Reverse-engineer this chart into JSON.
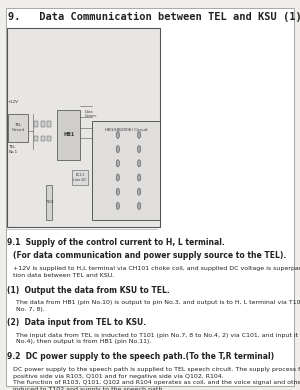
{
  "page_bg": "#f0eeeb",
  "content_bg": "#ffffff",
  "title": "9.   Data Communication between TEL and KSU (1)",
  "title_fontsize": 7.5,
  "title_bold": true,
  "section_91_header": "9.1  Supply of the control current to H, L terminal.",
  "section_91_subheader": "(For data communication and power supply source to the TEL).",
  "section_91_text": "+12V is supplied to H,L terminal via CH101 choke coil, and supplied DC voltage is superpaused to communica-\ntion data between TEL and KSU.",
  "item_1_header": "(1)  Output the data from KSU to TEL.",
  "item_1_text": "The data from HB1 (pin No.10) is output to pin No.3, and output is to H, L terminal via T101 (pin No.9, 10 to\nNo. 7, 8).",
  "item_2_header": "(2)  Data input from TEL to KSU.",
  "item_2_text": "The input data from TEL is inducted to T101 (pin No.7, 8 to No.4, 2) via C101, and input it to HB1 STAT (pin\nNo.4), then output is from HB1 (pin No.11).",
  "section_92_header": "9.2  DC power supply to the speech path.(To the T,R terminal)",
  "section_92_text": "DC power supply to the speech path is supplied to TEL speech circuit. The supply process for +12V is for\npositive side via R103, Q101 and for negative side via Q102, R104.\nThe function of R103, Q101, Q102 and R104 operates as coil, and the voice signal and other tone signals is\ninduced to T102 and supply to the speech path.",
  "border_color": "#888888",
  "text_color": "#222222",
  "header_fontsize": 5.5,
  "body_fontsize": 4.5
}
